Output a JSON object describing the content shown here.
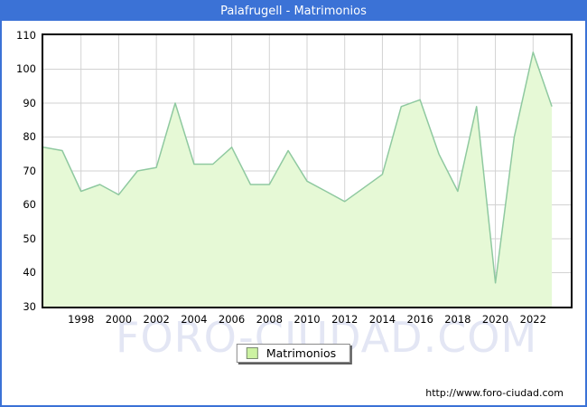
{
  "window": {
    "title": "Palafrugell - Matrimonios"
  },
  "chart_data": {
    "type": "area",
    "title": "Palafrugell - Matrimonios",
    "series_name": "Matrimonios",
    "x": [
      1996,
      1997,
      1998,
      1999,
      2000,
      2001,
      2002,
      2003,
      2004,
      2005,
      2006,
      2007,
      2008,
      2009,
      2010,
      2011,
      2012,
      2013,
      2014,
      2015,
      2016,
      2017,
      2018,
      2019,
      2020,
      2021,
      2022,
      2023
    ],
    "values": [
      77,
      76,
      64,
      66,
      63,
      70,
      71,
      90,
      72,
      72,
      77,
      66,
      66,
      76,
      67,
      64,
      61,
      65,
      69,
      89,
      91,
      75,
      64,
      89,
      37,
      80,
      105,
      89
    ],
    "xlim": [
      1996,
      2024
    ],
    "ylim": [
      30,
      110
    ],
    "yticks": [
      30,
      40,
      50,
      60,
      70,
      80,
      90,
      100,
      110
    ],
    "xticks": [
      1998,
      2000,
      2002,
      2004,
      2006,
      2008,
      2010,
      2012,
      2014,
      2016,
      2018,
      2020,
      2022
    ],
    "grid": true,
    "legend_position": "bottom-center",
    "colors": {
      "frame_blue": "#3b72d6",
      "area_fill": "#e6f9d6",
      "line": "#8fc9a0",
      "gridline": "#d2d2d2",
      "plot_border": "#000000",
      "legend_swatch": "#ccf2a2",
      "watermark": "#e3e6f4"
    }
  },
  "legend": {
    "label": "Matrimonios"
  },
  "watermark_text": "FORO-CIUDAD.COM",
  "footer": {
    "url": "http://www.foro-ciudad.com"
  }
}
